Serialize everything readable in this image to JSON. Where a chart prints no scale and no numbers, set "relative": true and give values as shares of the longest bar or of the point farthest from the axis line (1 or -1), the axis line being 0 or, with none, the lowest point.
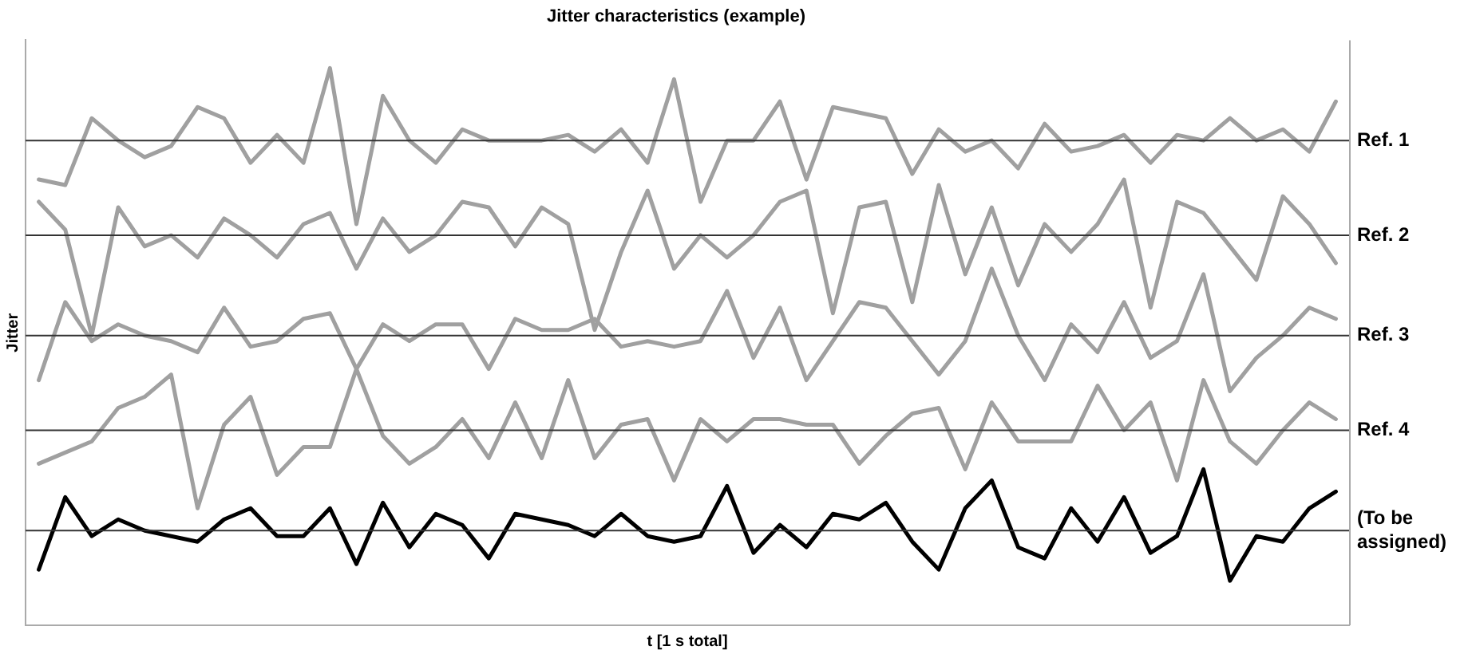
{
  "chart_data": {
    "type": "line",
    "title": "Jitter characteristics (example)",
    "xlabel": "t [1 s total]",
    "ylabel": "Jitter",
    "categories": [
      null,
      null,
      null,
      null,
      null,
      null,
      null,
      null,
      null,
      null,
      null,
      null,
      null,
      null,
      null,
      null,
      null,
      null,
      null,
      null,
      null,
      null,
      null,
      null,
      null,
      null,
      null,
      null,
      null,
      null,
      null,
      null,
      null,
      null,
      null,
      null,
      null,
      null,
      null,
      null,
      null,
      null,
      null,
      null,
      null,
      null,
      null,
      null,
      null,
      null
    ],
    "relative": true,
    "grid": false,
    "legend": false,
    "tick_labels": false,
    "marker": "none",
    "line_style": "solid",
    "series": [
      {
        "color": "#a0a0a0",
        "values": [
          0.8,
          0.79,
          0.91,
          0.87,
          0.84,
          0.86,
          0.93,
          0.91,
          0.83,
          0.88,
          0.83,
          1.0,
          0.72,
          0.95,
          0.87,
          0.83,
          0.89,
          0.87,
          0.87,
          0.87,
          0.88,
          0.85,
          0.89,
          0.83,
          0.98,
          0.76,
          0.87,
          0.87,
          0.94,
          0.8,
          0.93,
          0.92,
          0.91,
          0.81,
          0.89,
          0.85,
          0.87,
          0.82,
          0.9,
          0.85,
          0.86,
          0.88,
          0.83,
          0.88,
          0.87,
          0.91,
          0.87,
          0.89,
          0.85,
          0.94
        ]
      },
      {
        "color": "#a0a0a0",
        "values": [
          0.76,
          0.71,
          0.52,
          0.75,
          0.68,
          0.7,
          0.66,
          0.73,
          0.7,
          0.66,
          0.72,
          0.74,
          0.64,
          0.73,
          0.67,
          0.7,
          0.76,
          0.75,
          0.68,
          0.75,
          0.72,
          0.53,
          0.67,
          0.78,
          0.64,
          0.7,
          0.66,
          0.7,
          0.76,
          0.78,
          0.56,
          0.75,
          0.76,
          0.58,
          0.79,
          0.63,
          0.75,
          0.61,
          0.72,
          0.67,
          0.72,
          0.8,
          0.57,
          0.76,
          0.74,
          0.68,
          0.62,
          0.77,
          0.72,
          0.65
        ]
      },
      {
        "color": "#a0a0a0",
        "values": [
          0.44,
          0.58,
          0.51,
          0.54,
          0.52,
          0.51,
          0.49,
          0.57,
          0.5,
          0.51,
          0.55,
          0.56,
          0.46,
          0.54,
          0.51,
          0.54,
          0.54,
          0.46,
          0.55,
          0.53,
          0.53,
          0.55,
          0.5,
          0.51,
          0.5,
          0.51,
          0.6,
          0.48,
          0.57,
          0.44,
          0.51,
          0.58,
          0.57,
          0.51,
          0.45,
          0.51,
          0.64,
          0.52,
          0.44,
          0.54,
          0.49,
          0.58,
          0.48,
          0.51,
          0.63,
          0.42,
          0.48,
          0.52,
          0.57,
          0.55
        ]
      },
      {
        "color": "#a0a0a0",
        "values": [
          0.29,
          0.31,
          0.33,
          0.39,
          0.41,
          0.45,
          0.21,
          0.36,
          0.41,
          0.27,
          0.32,
          0.32,
          0.46,
          0.34,
          0.29,
          0.32,
          0.37,
          0.3,
          0.4,
          0.3,
          0.44,
          0.3,
          0.36,
          0.37,
          0.26,
          0.37,
          0.33,
          0.37,
          0.37,
          0.36,
          0.36,
          0.29,
          0.34,
          0.38,
          0.39,
          0.28,
          0.4,
          0.33,
          0.33,
          0.33,
          0.43,
          0.35,
          0.4,
          0.26,
          0.44,
          0.33,
          0.29,
          0.35,
          0.4,
          0.37
        ]
      },
      {
        "color": "#000000",
        "values": [
          0.1,
          0.23,
          0.16,
          0.19,
          0.17,
          0.16,
          0.15,
          0.19,
          0.21,
          0.16,
          0.16,
          0.21,
          0.11,
          0.22,
          0.14,
          0.2,
          0.18,
          0.12,
          0.2,
          0.19,
          0.18,
          0.16,
          0.2,
          0.16,
          0.15,
          0.16,
          0.25,
          0.13,
          0.18,
          0.14,
          0.2,
          0.19,
          0.22,
          0.15,
          0.1,
          0.21,
          0.26,
          0.14,
          0.12,
          0.21,
          0.15,
          0.23,
          0.13,
          0.16,
          0.28,
          0.08,
          0.16,
          0.15,
          0.21,
          0.24
        ]
      }
    ],
    "ref_lines": [
      {
        "axis": "y",
        "value": 0.87,
        "label": "Ref. 1"
      },
      {
        "axis": "y",
        "value": 0.7,
        "label": "Ref. 2"
      },
      {
        "axis": "y",
        "value": 0.52,
        "label": "Ref. 3"
      },
      {
        "axis": "y",
        "value": 0.35,
        "label": "Ref. 4"
      },
      {
        "axis": "y",
        "value": 0.17,
        "label": "(To be assigned)"
      }
    ]
  }
}
